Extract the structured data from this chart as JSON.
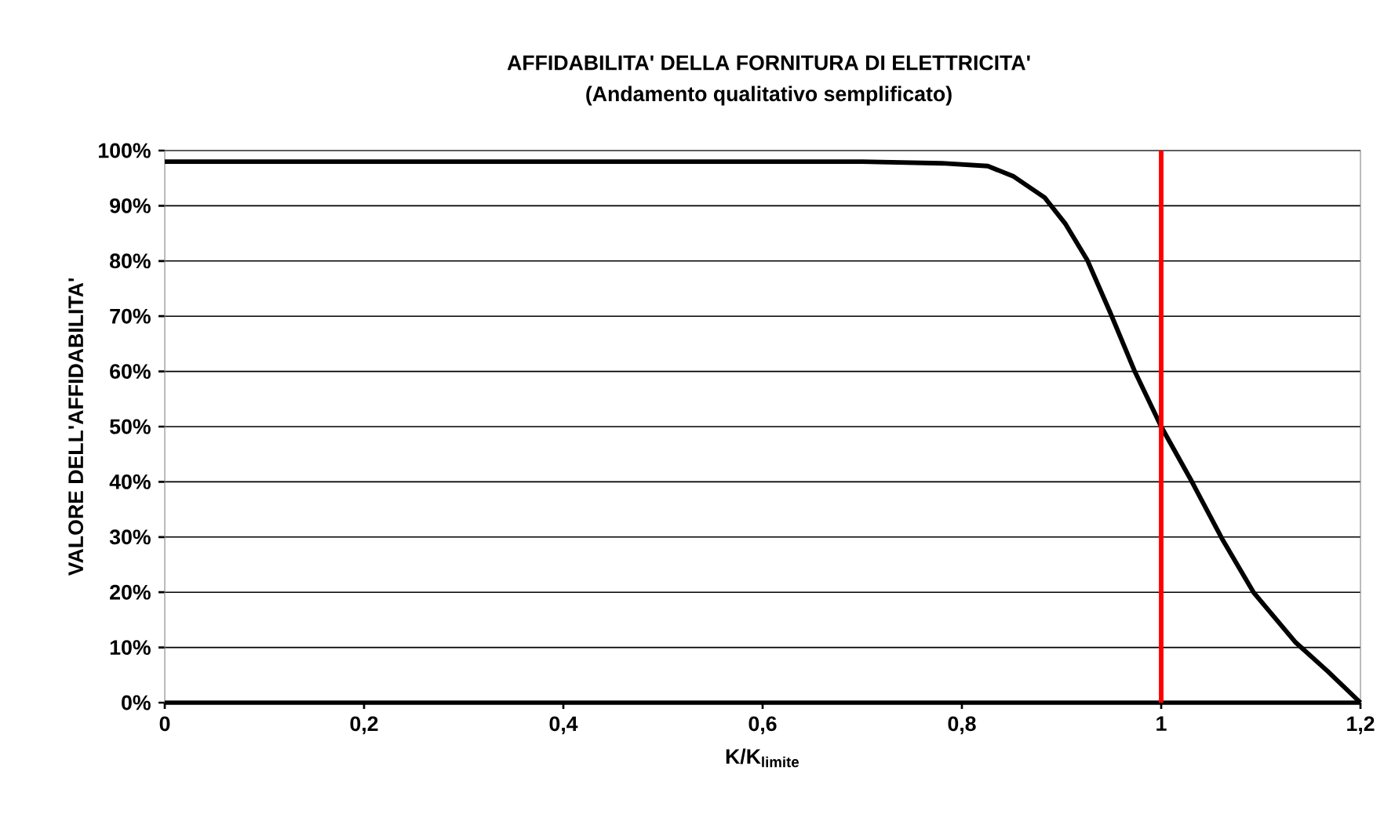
{
  "chart_data": {
    "type": "line",
    "title": "AFFIDABILITA' DELLA FORNITURA DI ELETTRICITA'",
    "subtitle": "(Andamento qualitativo semplificato)",
    "xlabel": "K/K$_{limite}$",
    "ylabel": "VALORE DELL'AFFIDABILITA'",
    "series": [
      {
        "color": "#000000",
        "x": [
          0,
          0.2,
          0.4,
          0.6,
          0.7,
          0.78,
          0.826,
          0.852,
          0.883,
          0.904,
          0.926,
          0.949,
          0.973,
          1.0,
          1.03,
          1.062,
          1.093,
          1.135,
          1.167,
          1.2
        ],
        "values": [
          98,
          98,
          98,
          98,
          98,
          97.7,
          97.2,
          95.3,
          91.5,
          86.7,
          80.1,
          70.6,
          60.2,
          50,
          40.3,
          29.4,
          19.9,
          10.9,
          5.7,
          0
        ]
      }
    ],
    "xlim": [
      0,
      1.2
    ],
    "ylim": [
      0,
      100
    ],
    "xticks": [
      0,
      {
        "value": 0.2,
        "label": "0,2"
      },
      {
        "value": 0.4,
        "label": "0,4"
      },
      {
        "value": 0.6,
        "label": "0,6"
      },
      {
        "value": 0.8,
        "label": "0,8"
      },
      1,
      {
        "value": 1.2,
        "label": "1,2"
      }
    ],
    "yticks": [
      {
        "value": 0,
        "label": "0%"
      },
      {
        "value": 10,
        "label": "10%"
      },
      {
        "value": 20,
        "label": "20%"
      },
      {
        "value": 30,
        "label": "30%"
      },
      {
        "value": 40,
        "label": "40%"
      },
      {
        "value": 50,
        "label": "50%"
      },
      {
        "value": 60,
        "label": "60%"
      },
      {
        "value": 70,
        "label": "70%"
      },
      {
        "value": 80,
        "label": "80%"
      },
      {
        "value": 90,
        "label": "90%"
      },
      {
        "value": 100,
        "label": "100%"
      }
    ],
    "ref_lines": [
      {
        "axis": "x",
        "value": 1,
        "color": "#ff0000"
      }
    ],
    "grid": "y",
    "legend": false,
    "marker": "none",
    "line_style": "solid"
  }
}
